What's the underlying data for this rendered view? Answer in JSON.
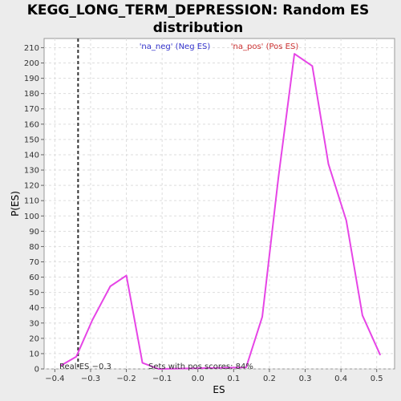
{
  "chart_data": {
    "type": "line",
    "title_line1": "KEGG_LONG_TERM_DEPRESSION: Random ES",
    "title_line2": "distribution",
    "xlabel": "ES",
    "ylabel": "P(ES)",
    "xlim": [
      -0.43,
      0.55
    ],
    "ylim": [
      0,
      216
    ],
    "xticks": [
      -0.4,
      -0.3,
      -0.2,
      -0.1,
      0.0,
      0.1,
      0.2,
      0.3,
      0.4,
      0.5
    ],
    "xtick_labels": [
      "−0.4",
      "−0.3",
      "−0.2",
      "−0.1",
      "0.0",
      "0.1",
      "0.2",
      "0.3",
      "0.4",
      "0.5"
    ],
    "yticks": [
      0,
      10,
      20,
      30,
      40,
      50,
      60,
      70,
      80,
      90,
      100,
      110,
      120,
      130,
      140,
      150,
      160,
      170,
      180,
      190,
      200,
      210
    ],
    "grid": true,
    "legend": [
      {
        "label": "'na_neg' (Neg ES)",
        "color": "#3333cc"
      },
      {
        "label": "'na_pos' (Pos ES)",
        "color": "#cc3333"
      }
    ],
    "series": [
      {
        "color": "#e645e6",
        "x": [
          -0.385,
          -0.34,
          -0.295,
          -0.245,
          -0.2,
          -0.155,
          -0.11,
          0.135,
          0.18,
          0.225,
          0.27,
          0.32,
          0.365,
          0.415,
          0.46,
          0.51
        ],
        "y": [
          2,
          8,
          32,
          54,
          61,
          4,
          0,
          1,
          34,
          125,
          206,
          198,
          134,
          97,
          35,
          9
        ]
      }
    ],
    "real_es": {
      "x": -0.335,
      "label": "Real ES −0.3"
    },
    "annotation": "Sets with pos scores: 84%"
  }
}
